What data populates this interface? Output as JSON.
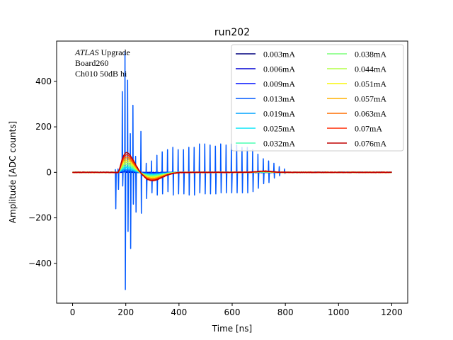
{
  "chart_data": {
    "type": "line",
    "title": "run202",
    "xlabel": "Time [ns]",
    "ylabel": "Amplitude [ADC counts]",
    "xlim": [
      -60,
      1260
    ],
    "ylim": [
      -575,
      577
    ],
    "xticks": [
      0,
      200,
      400,
      600,
      800,
      1000,
      1200
    ],
    "yticks": [
      -400,
      -200,
      0,
      200,
      400
    ],
    "grid": false,
    "legend": {
      "placement": "top-right",
      "columns": 2
    },
    "annotation": {
      "lines": [
        {
          "italic": "ATLAS",
          "text": " Upgrade"
        },
        {
          "italic": "",
          "text": " Board260"
        },
        {
          "italic": "",
          "text": " Ch010 50dB hi"
        }
      ]
    },
    "series": [
      {
        "name": "0.003mA",
        "color": "#00007f",
        "peak": 1,
        "undershoot": -1
      },
      {
        "name": "0.006mA",
        "color": "#0000d4",
        "peak": 3,
        "undershoot": -2
      },
      {
        "name": "0.009mA",
        "color": "#0010ff",
        "peak": 5,
        "undershoot": -3
      },
      {
        "name": "0.013mA",
        "color": "#0058ff",
        "peak": 8,
        "undershoot": -5,
        "noisy": true
      },
      {
        "name": "0.019mA",
        "color": "#00a4ff",
        "peak": 15,
        "undershoot": -9
      },
      {
        "name": "0.025mA",
        "color": "#0ae5f8",
        "peak": 22,
        "undershoot": -12
      },
      {
        "name": "0.032mA",
        "color": "#4affb3",
        "peak": 30,
        "undershoot": -16
      },
      {
        "name": "0.038mA",
        "color": "#7cff79",
        "peak": 38,
        "undershoot": -19
      },
      {
        "name": "0.044mA",
        "color": "#b3ff46",
        "peak": 46,
        "undershoot": -23
      },
      {
        "name": "0.051mA",
        "color": "#f8f50a",
        "peak": 55,
        "undershoot": -27
      },
      {
        "name": "0.057mA",
        "color": "#ffb200",
        "peak": 64,
        "undershoot": -31
      },
      {
        "name": "0.063mA",
        "color": "#ff6f00",
        "peak": 72,
        "undershoot": -35
      },
      {
        "name": "0.07mA",
        "color": "#ff2800",
        "peak": 82,
        "undershoot": -39
      },
      {
        "name": "0.076mA",
        "color": "#c00000",
        "peak": 92,
        "undershoot": -43
      }
    ],
    "noise_spikes": {
      "series": "0.013mA",
      "t": [
        160,
        170,
        186,
        196,
        206,
        216,
        226,
        236,
        256,
        276,
        296,
        316,
        336,
        356,
        376,
        396,
        416,
        436,
        456,
        476,
        496,
        516,
        536,
        556,
        576,
        596,
        616,
        636,
        656,
        676,
        696,
        716,
        736,
        756,
        776,
        796
      ],
      "hi": [
        12,
        15,
        355,
        530,
        405,
        170,
        295,
        70,
        180,
        40,
        50,
        75,
        90,
        100,
        110,
        100,
        100,
        110,
        110,
        125,
        125,
        120,
        115,
        125,
        120,
        125,
        120,
        110,
        110,
        100,
        80,
        60,
        50,
        40,
        25,
        15
      ],
      "lo": [
        -160,
        -75,
        -60,
        -515,
        -260,
        -335,
        -140,
        -175,
        -180,
        -115,
        -90,
        -100,
        -95,
        -85,
        -100,
        -95,
        -95,
        -100,
        -100,
        -90,
        -95,
        -95,
        -95,
        -90,
        -90,
        -90,
        -90,
        -90,
        -90,
        -85,
        -70,
        -50,
        -45,
        -25,
        -15,
        -5
      ]
    }
  }
}
